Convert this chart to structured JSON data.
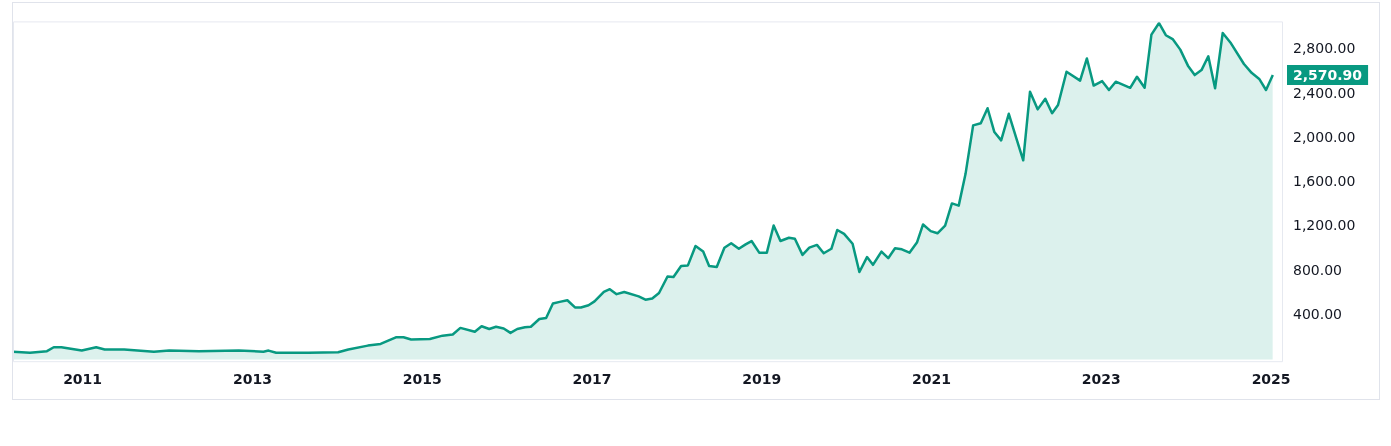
{
  "chart_data": {
    "type": "area",
    "x": [
      2010.18,
      2010.38,
      2010.58,
      2010.66,
      2010.75,
      2010.99,
      2011.16,
      2011.26,
      2011.49,
      2011.84,
      2012.02,
      2012.37,
      2012.84,
      2013.13,
      2013.19,
      2013.28,
      2013.66,
      2014.01,
      2014.13,
      2014.36,
      2014.51,
      2014.69,
      2014.78,
      2014.87,
      2015.09,
      2015.24,
      2015.36,
      2015.45,
      2015.62,
      2015.7,
      2015.79,
      2015.87,
      2015.96,
      2016.04,
      2016.12,
      2016.21,
      2016.28,
      2016.38,
      2016.46,
      2016.54,
      2016.62,
      2016.71,
      2016.8,
      2016.87,
      2016.96,
      2017.03,
      2017.14,
      2017.21,
      2017.29,
      2017.38,
      2017.55,
      2017.63,
      2017.71,
      2017.79,
      2017.89,
      2017.96,
      2018.05,
      2018.13,
      2018.22,
      2018.31,
      2018.38,
      2018.47,
      2018.56,
      2018.64,
      2018.73,
      2018.81,
      2018.88,
      2018.97,
      2019.06,
      2019.14,
      2019.22,
      2019.32,
      2019.39,
      2019.48,
      2019.56,
      2019.65,
      2019.73,
      2019.82,
      2019.89,
      2019.97,
      2020.07,
      2020.15,
      2020.24,
      2020.31,
      2020.41,
      2020.49,
      2020.57,
      2020.65,
      2020.74,
      2020.83,
      2020.9,
      2020.99,
      2021.07,
      2021.16,
      2021.24,
      2021.32,
      2021.4,
      2021.49,
      2021.58,
      2021.66,
      2021.74,
      2021.82,
      2021.91,
      2022.0,
      2022.08,
      2022.16,
      2022.25,
      2022.34,
      2022.42,
      2022.49,
      2022.59,
      2022.75,
      2022.83,
      2022.91,
      2023.01,
      2023.09,
      2023.17,
      2023.34,
      2023.42,
      2023.51,
      2023.59,
      2023.68,
      2023.76,
      2023.84,
      2023.93,
      2024.02,
      2024.1,
      2024.18,
      2024.26,
      2024.34,
      2024.43,
      2024.52,
      2024.68,
      2024.77,
      2024.86,
      2024.94,
      2025.02
    ],
    "series": [
      {
        "color": "#089981",
        "values": [
          70,
          60,
          75,
          110,
          110,
          80,
          110,
          90,
          90,
          70,
          80,
          75,
          80,
          70,
          80,
          60,
          60,
          65,
          90,
          125,
          140,
          200,
          200,
          180,
          185,
          215,
          225,
          285,
          250,
          300,
          275,
          295,
          280,
          240,
          275,
          290,
          295,
          365,
          375,
          505,
          520,
          535,
          470,
          470,
          490,
          525,
          610,
          635,
          590,
          610,
          570,
          540,
          550,
          600,
          750,
          745,
          845,
          850,
          1025,
          975,
          845,
          835,
          1010,
          1050,
          1000,
          1040,
          1070,
          965,
          965,
          1210,
          1070,
          1100,
          1090,
          945,
          1010,
          1035,
          960,
          1000,
          1170,
          1135,
          1045,
          790,
          925,
          855,
          975,
          915,
          1005,
          995,
          965,
          1060,
          1220,
          1160,
          1140,
          1210,
          1410,
          1390,
          1675,
          2115,
          2135,
          2270,
          2055,
          1980,
          2220,
          1995,
          1800,
          2420,
          2260,
          2355,
          2225,
          2300,
          2600,
          2520,
          2720,
          2475,
          2515,
          2435,
          2510,
          2455,
          2555,
          2455,
          2935,
          3040,
          2930,
          2895,
          2800,
          2655,
          2570,
          2615,
          2740,
          2450,
          2950,
          2865,
          2670,
          2590,
          2535,
          2435,
          2570.9
        ]
      }
    ],
    "xlim": [
      2010.18,
      2025.14
    ],
    "xticks": [
      2011,
      2013,
      2015,
      2017,
      2019,
      2021,
      2023,
      2025
    ],
    "ylim": [
      -25,
      3055
    ],
    "yticks": [
      {
        "value": 400,
        "label": "400.00"
      },
      {
        "value": 800,
        "label": "800.00"
      },
      {
        "value": 1200,
        "label": "1,200.00"
      },
      {
        "value": 1600,
        "label": "1,600.00"
      },
      {
        "value": 2000,
        "label": "2,000.00"
      },
      {
        "value": 2400,
        "label": "2,400.00"
      },
      {
        "value": 2800,
        "label": "2,800.00"
      }
    ],
    "grid": false,
    "legend": false,
    "marker": "none",
    "line_style": "solid",
    "annotations": [
      "2,570.90"
    ]
  }
}
